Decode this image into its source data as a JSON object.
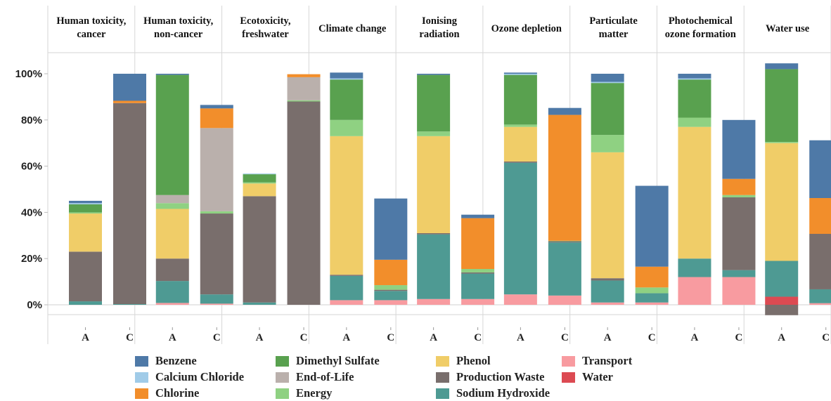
{
  "chart_data": {
    "type": "bar",
    "stacked": true,
    "grid": false,
    "legend_position": "bottom",
    "ylim": [
      -5,
      110
    ],
    "yticks": [
      "100%",
      "80%",
      "60%",
      "40%",
      "20%",
      "0%"
    ],
    "ytick_values": [
      100,
      80,
      60,
      40,
      20,
      0
    ],
    "series": [
      {
        "name": "Water",
        "color": "#dc4a52"
      },
      {
        "name": "Transport",
        "color": "#f89ba0"
      },
      {
        "name": "Sodium Hydroxide",
        "color": "#4e9a93"
      },
      {
        "name": "Production Waste",
        "color": "#796e6c"
      },
      {
        "name": "Phenol",
        "color": "#f0cd68"
      },
      {
        "name": "Energy",
        "color": "#8fd182"
      },
      {
        "name": "End-of-Life",
        "color": "#bab0ac"
      },
      {
        "name": "Dimethyl Sulfate",
        "color": "#59a14f"
      },
      {
        "name": "Chlorine",
        "color": "#f28e2b"
      },
      {
        "name": "Calcium Chloride",
        "color": "#a0cbe8"
      },
      {
        "name": "Benzene",
        "color": "#4e79a7"
      }
    ],
    "legend_order": [
      "Benzene",
      "Dimethyl Sulfate",
      "Phenol",
      "Transport",
      "Calcium Chloride",
      "End-of-Life",
      "Production Waste",
      "Water",
      "Chlorine",
      "Energy",
      "Sodium Hydroxide"
    ],
    "panels": [
      {
        "title": [
          "Human toxicity,",
          "cancer"
        ],
        "bars": [
          {
            "label": "A",
            "segments": {
              "Sodium Hydroxide": 1.5,
              "Production Waste": 21.5,
              "Phenol": 16.5,
              "Energy": 0.5,
              "Dimethyl Sulfate": 3.5,
              "Calcium Chloride": 0.5,
              "Benzene": 1.0
            }
          },
          {
            "label": "C",
            "segments": {
              "Sodium Hydroxide": 0.3,
              "Production Waste": 87.0,
              "Chlorine": 1.0,
              "Benzene": 11.7
            }
          }
        ]
      },
      {
        "title": [
          "Human toxicity,",
          "non-cancer"
        ],
        "bars": [
          {
            "label": "A",
            "segments": {
              "Transport": 0.8,
              "Sodium Hydroxide": 9.5,
              "Production Waste": 9.7,
              "Phenol": 21.5,
              "Energy": 2.5,
              "End-of-Life": 3.5,
              "Dimethyl Sulfate": 52.0,
              "Benzene": 0.5
            }
          },
          {
            "label": "C",
            "segments": {
              "Transport": 0.5,
              "Sodium Hydroxide": 4.0,
              "Production Waste": 35.0,
              "Energy": 1.0,
              "End-of-Life": 36.0,
              "Chlorine": 8.5,
              "Benzene": 1.5
            }
          }
        ]
      },
      {
        "title": [
          "Ecotoxicity,",
          "freshwater"
        ],
        "bars": [
          {
            "label": "A",
            "segments": {
              "Sodium Hydroxide": 1.0,
              "Production Waste": 46.0,
              "Phenol": 5.5,
              "Energy": 0.5,
              "Dimethyl Sulfate": 3.5,
              "Calcium Chloride": 0.3
            }
          },
          {
            "label": "C",
            "segments": {
              "Production Waste": 88.0,
              "Energy": 0.5,
              "End-of-Life": 10.0,
              "Chlorine": 1.3
            }
          }
        ]
      },
      {
        "title": [
          "Climate change"
        ],
        "bars": [
          {
            "label": "A",
            "segments": {
              "Transport": 2.0,
              "Sodium Hydroxide": 10.5,
              "Production Waste": 0.5,
              "Phenol": 60.0,
              "Energy": 7.0,
              "Dimethyl Sulfate": 17.5,
              "Calcium Chloride": 0.5,
              "Benzene": 2.5
            }
          },
          {
            "label": "C",
            "segments": {
              "Transport": 2.0,
              "Sodium Hydroxide": 4.0,
              "Production Waste": 0.5,
              "Energy": 2.0,
              "Chlorine": 11.0,
              "Benzene": 26.5
            }
          }
        ]
      },
      {
        "title": [
          "Ionising",
          "radiation"
        ],
        "bars": [
          {
            "label": "A",
            "segments": {
              "Transport": 2.5,
              "Sodium Hydroxide": 28.0,
              "Production Waste": 0.5,
              "Phenol": 42.0,
              "Energy": 2.0,
              "Dimethyl Sulfate": 24.5,
              "Benzene": 0.5
            }
          },
          {
            "label": "C",
            "segments": {
              "Transport": 2.5,
              "Sodium Hydroxide": 11.0,
              "Production Waste": 0.5,
              "Energy": 1.5,
              "Chlorine": 22.0,
              "Benzene": 1.5
            }
          }
        ]
      },
      {
        "title": [
          "Ozone depletion"
        ],
        "bars": [
          {
            "label": "A",
            "segments": {
              "Transport": 4.5,
              "Sodium Hydroxide": 57.0,
              "Production Waste": 0.5,
              "Phenol": 15.0,
              "Energy": 1.0,
              "Dimethyl Sulfate": 21.5,
              "Calcium Chloride": 0.5,
              "Benzene": 0.5
            }
          },
          {
            "label": "C",
            "segments": {
              "Transport": 4.0,
              "Sodium Hydroxide": 23.0,
              "Production Waste": 0.5,
              "Energy": 0.2,
              "Chlorine": 54.5,
              "Benzene": 3.0
            }
          }
        ]
      },
      {
        "title": [
          "Particulate",
          "matter"
        ],
        "bars": [
          {
            "label": "A",
            "segments": {
              "Transport": 1.0,
              "Sodium Hydroxide": 9.5,
              "Production Waste": 1.0,
              "Phenol": 54.5,
              "Energy": 7.5,
              "Dimethyl Sulfate": 22.5,
              "Calcium Chloride": 0.5,
              "Benzene": 3.5
            }
          },
          {
            "label": "C",
            "segments": {
              "Transport": 1.0,
              "Sodium Hydroxide": 4.0,
              "Energy": 2.5,
              "Chlorine": 9.0,
              "Benzene": 35.0
            }
          }
        ]
      },
      {
        "title": [
          "Photochemical",
          "ozone formation"
        ],
        "bars": [
          {
            "label": "A",
            "segments": {
              "Transport": 12.0,
              "Sodium Hydroxide": 8.0,
              "Phenol": 57.0,
              "Energy": 4.0,
              "Dimethyl Sulfate": 16.5,
              "Calcium Chloride": 0.5,
              "Benzene": 2.0
            }
          },
          {
            "label": "C",
            "segments": {
              "Transport": 12.0,
              "Sodium Hydroxide": 3.0,
              "Production Waste": 31.5,
              "Energy": 1.0,
              "Chlorine": 7.0,
              "Benzene": 25.5
            }
          }
        ]
      },
      {
        "title": [
          "Water use"
        ],
        "bars": [
          {
            "label": "A",
            "negative": {
              "Production Waste": 4.5
            },
            "segments": {
              "Water": 3.5,
              "Sodium Hydroxide": 15.5,
              "Phenol": 51.0,
              "Energy": 0.5,
              "Dimethyl Sulfate": 31.5,
              "Benzene": 2.5
            }
          },
          {
            "label": "C",
            "segments": {
              "Transport": 0.7,
              "Sodium Hydroxide": 6.0,
              "Production Waste": 24.0,
              "Chlorine": 15.5,
              "Benzene": 25.0
            }
          }
        ]
      }
    ]
  }
}
